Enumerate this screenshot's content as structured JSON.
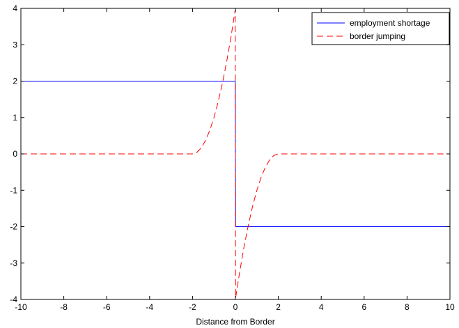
{
  "chart_data": {
    "type": "line",
    "title": "",
    "xlabel": "Distance from Border",
    "ylabel": "",
    "xlim": [
      -10,
      10
    ],
    "ylim": [
      -4,
      4
    ],
    "x_ticks": [
      -10,
      -8,
      -6,
      -4,
      -2,
      0,
      2,
      4,
      6,
      8,
      10
    ],
    "y_ticks": [
      -4,
      -3,
      -2,
      -1,
      0,
      1,
      2,
      3,
      4
    ],
    "x_tick_labels": [
      "-10",
      "-8",
      "-6",
      "-4",
      "-2",
      "0",
      "2",
      "4",
      "6",
      "8",
      "10"
    ],
    "y_tick_labels": [
      "-4",
      "-3",
      "-2",
      "-1",
      "0",
      "1",
      "2",
      "3",
      "4"
    ],
    "grid": false,
    "legend_position": "top-right",
    "series": [
      {
        "name": "employment shortage",
        "color": "#0000ff",
        "style": "solid",
        "x": [
          -10,
          -0.01,
          0.01,
          10
        ],
        "y": [
          2,
          2,
          -2,
          -2
        ]
      },
      {
        "name": "border jumping",
        "color": "#ff0000",
        "style": "dashed",
        "x": [
          -10,
          -2,
          -1.8,
          -1.6,
          -1.4,
          -1.2,
          -1.0,
          -0.8,
          -0.6,
          -0.4,
          -0.2,
          -0.01,
          0.01,
          0.2,
          0.4,
          0.6,
          0.8,
          1.0,
          1.2,
          1.4,
          1.6,
          1.8,
          2,
          10
        ],
        "y": [
          0,
          0,
          0.04,
          0.16,
          0.36,
          0.64,
          1.0,
          1.44,
          1.96,
          2.56,
          3.24,
          3.96,
          -3.96,
          -3.24,
          -2.56,
          -1.96,
          -1.44,
          -1.0,
          -0.64,
          -0.36,
          -0.16,
          -0.04,
          0,
          0
        ]
      }
    ]
  }
}
